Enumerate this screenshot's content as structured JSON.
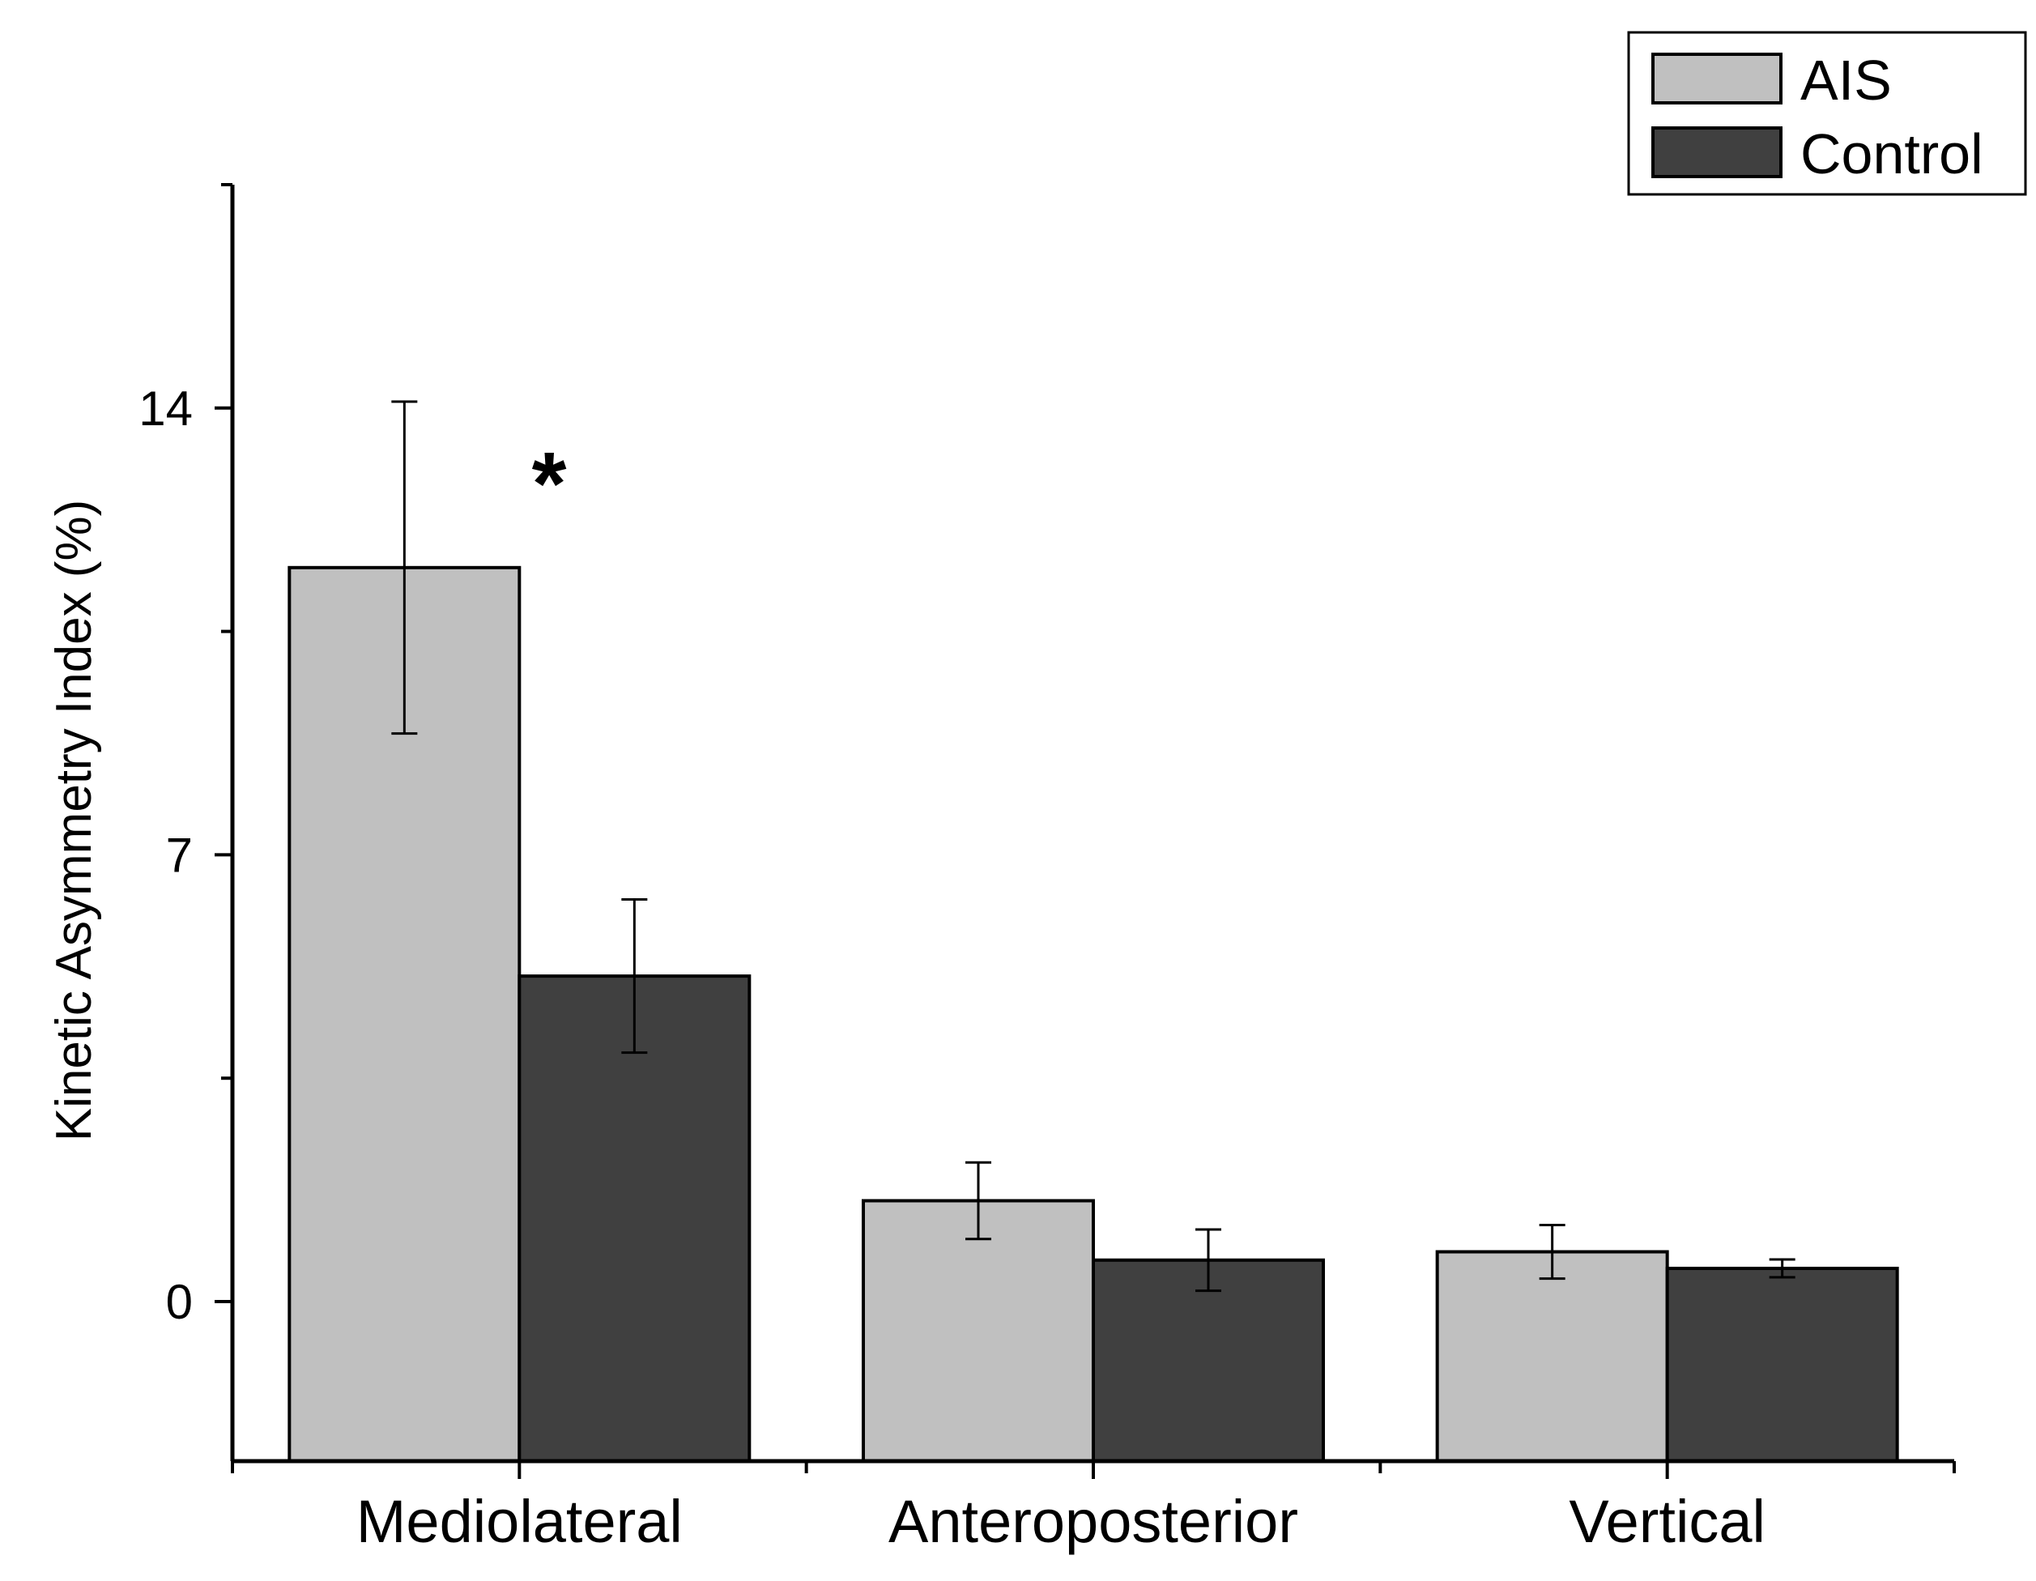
{
  "chart_data": {
    "type": "bar",
    "title": "",
    "xlabel": "",
    "ylabel": "Kinetic Asymmetry Index (%)",
    "categories": [
      "Mediolateral",
      "Anteroposterior",
      "Vertical"
    ],
    "series": [
      {
        "name": "AIS",
        "values": [
          11.5,
          1.58,
          0.78
        ],
        "errors": [
          2.6,
          0.6,
          0.42
        ],
        "color": "#c0c0c0"
      },
      {
        "name": "Control",
        "values": [
          5.1,
          0.65,
          0.52
        ],
        "errors": [
          1.2,
          0.48,
          0.14
        ],
        "color": "#404040"
      }
    ],
    "ylim": [
      -2.5,
      17.5
    ],
    "yticks": [
      0,
      7,
      14
    ],
    "yticks_labeled": [
      "0",
      "7",
      "14"
    ],
    "annotations": [
      {
        "text": "*",
        "category": "Mediolateral"
      }
    ],
    "legend": {
      "position": "top-right",
      "entries": [
        "AIS",
        "Control"
      ]
    },
    "grid": false
  }
}
